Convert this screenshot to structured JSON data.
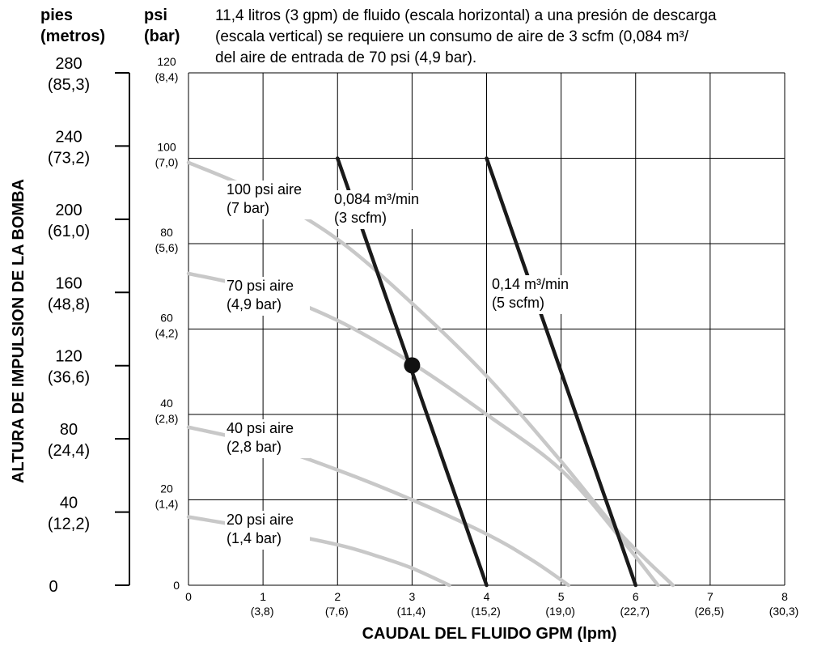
{
  "chart_data": {
    "type": "line",
    "note_lines": [
      "11,4 litros (3 gpm) de fluido (escala horizontal) a una presión de descarga",
      "(escala vertical) se requiere un consumo de aire de 3 scfm (0,084 m³/",
      "del aire de entrada de 70 psi (4,9 bar)."
    ],
    "xlabel": "CAUDAL DEL FLUIDO GPM (lpm)",
    "ylabel": "ALTURA DE IMPULSION DE LA BOMBA",
    "xlim": [
      0,
      8
    ],
    "ylim": [
      0,
      120
    ],
    "grid": true,
    "x_ticks": [
      {
        "value": 0,
        "main": "0",
        "sub": ""
      },
      {
        "value": 1,
        "main": "1",
        "sub": "(3,8)"
      },
      {
        "value": 2,
        "main": "2",
        "sub": "(7,6)"
      },
      {
        "value": 3,
        "main": "3",
        "sub": "(11,4)"
      },
      {
        "value": 4,
        "main": "4",
        "sub": "(15,2)"
      },
      {
        "value": 5,
        "main": "5",
        "sub": "(19,0)"
      },
      {
        "value": 6,
        "main": "6",
        "sub": "(22,7)"
      },
      {
        "value": 7,
        "main": "7",
        "sub": "(26,5)"
      },
      {
        "value": 8,
        "main": "8",
        "sub": "(30,3)"
      }
    ],
    "psi_axis": {
      "header": [
        "psi",
        "(bar)"
      ],
      "ticks": [
        {
          "value": 120,
          "main": "120",
          "sub": "(8,4)"
        },
        {
          "value": 100,
          "main": "100",
          "sub": "(7,0)"
        },
        {
          "value": 80,
          "main": "80",
          "sub": "(5,6)"
        },
        {
          "value": 60,
          "main": "60",
          "sub": "(4,2)"
        },
        {
          "value": 40,
          "main": "40",
          "sub": "(2,8)"
        },
        {
          "value": 20,
          "main": "20",
          "sub": "(1,4)"
        },
        {
          "value": 0,
          "main": "0",
          "sub": ""
        }
      ]
    },
    "feet_axis": {
      "header": [
        "pies",
        "(metros)"
      ],
      "ticks": [
        {
          "value": 280,
          "main": "280",
          "sub": "(85,3)"
        },
        {
          "value": 240,
          "main": "240",
          "sub": "(73,2)"
        },
        {
          "value": 200,
          "main": "200",
          "sub": "(61,0)"
        },
        {
          "value": 160,
          "main": "160",
          "sub": "(48,8)"
        },
        {
          "value": 120,
          "main": "120",
          "sub": "(36,6)"
        },
        {
          "value": 80,
          "main": "80",
          "sub": "(24,4)"
        },
        {
          "value": 40,
          "main": "40",
          "sub": "(12,2)"
        },
        {
          "value": 0,
          "main": "0",
          "sub": ""
        }
      ]
    },
    "air_pressure_curves": [
      {
        "name": "100 psi aire",
        "name2": "(7 bar)",
        "color": "#c8c8c8",
        "points": [
          [
            0,
            99
          ],
          [
            1,
            91.5
          ],
          [
            2,
            81
          ],
          [
            3,
            66
          ],
          [
            4,
            49
          ],
          [
            5,
            29
          ],
          [
            5.8,
            12
          ],
          [
            6.5,
            0
          ]
        ]
      },
      {
        "name": "70 psi aire",
        "name2": "(4,9 bar)",
        "color": "#c8c8c8",
        "points": [
          [
            0,
            73
          ],
          [
            1,
            69
          ],
          [
            2,
            62
          ],
          [
            3,
            52
          ],
          [
            4,
            40
          ],
          [
            5,
            27
          ],
          [
            5.8,
            11
          ],
          [
            6.3,
            0
          ]
        ]
      },
      {
        "name": "40 psi aire",
        "name2": "(2,8 bar)",
        "color": "#c8c8c8",
        "points": [
          [
            0,
            37
          ],
          [
            1,
            33
          ],
          [
            2,
            27
          ],
          [
            3,
            20
          ],
          [
            4,
            12
          ],
          [
            4.6,
            6
          ],
          [
            5.1,
            0
          ]
        ]
      },
      {
        "name": "20 psi aire",
        "name2": "(1,4 bar)",
        "color": "#c8c8c8",
        "points": [
          [
            0,
            16
          ],
          [
            1,
            13
          ],
          [
            2,
            9.5
          ],
          [
            2.5,
            7
          ],
          [
            3,
            4
          ],
          [
            3.5,
            0
          ]
        ]
      }
    ],
    "air_consumption_curves": [
      {
        "name": "0,084 m³/min",
        "name2": "(3 scfm)",
        "color": "#1a1a1a",
        "points": [
          [
            2,
            100
          ],
          [
            4,
            0
          ]
        ]
      },
      {
        "name": "0,14 m³/min",
        "name2": "(5 scfm)",
        "color": "#1a1a1a",
        "points": [
          [
            4,
            100
          ],
          [
            6,
            0
          ]
        ]
      }
    ],
    "operating_point": {
      "x": 3,
      "y": 51.5
    }
  }
}
